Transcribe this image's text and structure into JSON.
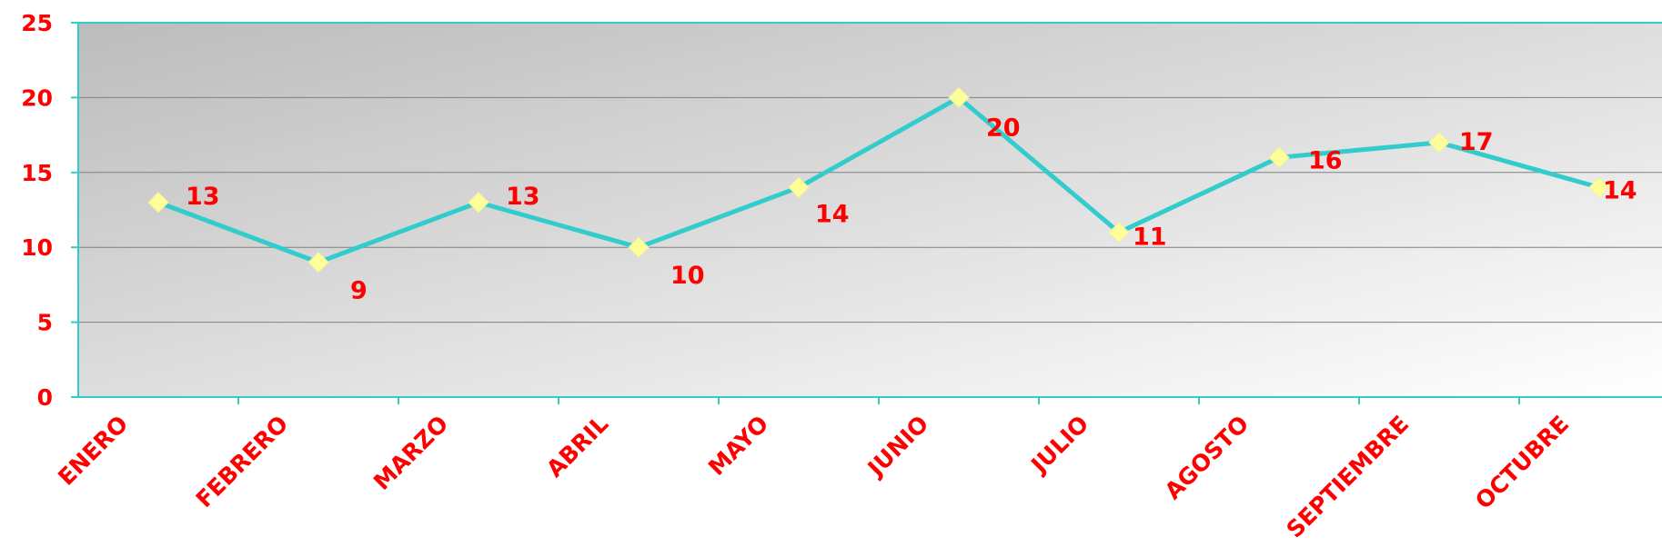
{
  "chart_data": {
    "type": "line",
    "title": "",
    "xlabel": "",
    "ylabel": "",
    "categories": [
      "ENERO",
      "FEBRERO",
      "MARZO",
      "ABRIL",
      "MAYO",
      "JUNIO",
      "JULIO",
      "AGOSTO",
      "SEPTIEMBRE",
      "OCTUBRE"
    ],
    "series": [
      {
        "values": [
          13,
          9,
          13,
          10,
          14,
          20,
          11,
          16,
          17,
          14
        ]
      }
    ],
    "ylim": [
      0,
      25
    ],
    "yticks": [
      0,
      5,
      10,
      15,
      20,
      25
    ],
    "grid": true,
    "legend": "none",
    "colors": {
      "line": "#33cccc",
      "marker": "#ffff99",
      "labels": "#ff0000",
      "axis": "#33cccc",
      "gridline": "#808080",
      "plot_bg_dark": "#bcbcbc",
      "plot_bg_light": "#ffffff"
    }
  }
}
